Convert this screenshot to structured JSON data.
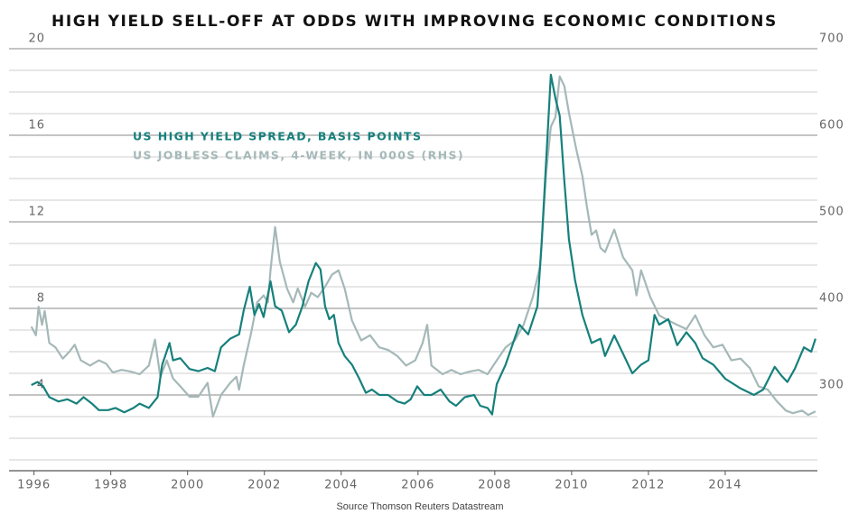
{
  "chart_data": {
    "type": "line",
    "title": "HIGH YIELD SELL-OFF AT ODDS WITH IMPROVING ECONOMIC CONDITIONS",
    "source": "Source Thomson Reuters Datastream",
    "xlim": [
      1995.35,
      2016.4
    ],
    "xticks": [
      1996,
      1998,
      2000,
      2002,
      2004,
      2006,
      2008,
      2010,
      2012,
      2014
    ],
    "ylim": [
      0.5,
      20
    ],
    "yticks": [
      4,
      8,
      12,
      16,
      20
    ],
    "minor_yticks": [
      1,
      2,
      3,
      5,
      6,
      7,
      9,
      10,
      11,
      13,
      14,
      15,
      17,
      18,
      19
    ],
    "y2lim": [
      212.5,
      700
    ],
    "y2ticks": [
      300,
      400,
      500,
      600,
      700
    ],
    "grid": true,
    "legend": "upper left",
    "series": [
      {
        "name": "US HIGH YIELD SPREAD, BASIS POINTS",
        "color": "#16807c",
        "axis": "y",
        "x": [
          1995.93,
          1996.09,
          1996.24,
          1996.4,
          1996.64,
          1996.87,
          1997.11,
          1997.29,
          1997.51,
          1997.69,
          1997.93,
          1998.12,
          1998.35,
          1998.59,
          1998.75,
          1998.99,
          1999.22,
          1999.34,
          1999.53,
          1999.62,
          1999.81,
          2000.05,
          2000.28,
          2000.52,
          2000.71,
          2000.87,
          2001.11,
          2001.34,
          2001.46,
          2001.62,
          2001.74,
          2001.86,
          2001.98,
          2002.16,
          2002.28,
          2002.45,
          2002.64,
          2002.82,
          2002.99,
          2003.15,
          2003.34,
          2003.46,
          2003.58,
          2003.69,
          2003.81,
          2003.93,
          2004.09,
          2004.28,
          2004.47,
          2004.64,
          2004.8,
          2004.99,
          2005.22,
          2005.46,
          2005.65,
          2005.81,
          2005.98,
          2006.16,
          2006.35,
          2006.59,
          2006.82,
          2006.99,
          2007.22,
          2007.46,
          2007.62,
          2007.81,
          2007.93,
          2008.05,
          2008.28,
          2008.64,
          2008.87,
          2009.11,
          2009.22,
          2009.46,
          2009.58,
          2009.69,
          2009.81,
          2009.93,
          2010.09,
          2010.28,
          2010.52,
          2010.75,
          2010.87,
          2011.11,
          2011.34,
          2011.58,
          2011.81,
          2012.0,
          2012.16,
          2012.28,
          2012.52,
          2012.75,
          2012.99,
          2013.22,
          2013.41,
          2013.69,
          2014.0,
          2014.4,
          2014.75,
          2014.99,
          2015.29,
          2015.46,
          2015.62,
          2015.81,
          2016.05,
          2016.24,
          2016.35
        ],
        "values": [
          4.46,
          4.6,
          4.4,
          3.9,
          3.7,
          3.8,
          3.6,
          3.9,
          3.6,
          3.3,
          3.3,
          3.4,
          3.2,
          3.4,
          3.6,
          3.4,
          3.9,
          5.4,
          6.4,
          5.6,
          5.7,
          5.2,
          5.1,
          5.25,
          5.1,
          6.2,
          6.6,
          6.8,
          7.9,
          9.0,
          7.7,
          8.2,
          7.6,
          9.25,
          8.1,
          7.9,
          6.9,
          7.25,
          8.1,
          9.25,
          10.1,
          9.8,
          8.1,
          7.5,
          7.7,
          6.4,
          5.8,
          5.4,
          4.75,
          4.1,
          4.25,
          4.0,
          4.0,
          3.7,
          3.6,
          3.8,
          4.4,
          4.0,
          4.0,
          4.25,
          3.7,
          3.5,
          3.9,
          4.0,
          3.5,
          3.4,
          3.1,
          4.5,
          5.4,
          7.25,
          6.8,
          8.1,
          11.0,
          18.8,
          17.7,
          16.9,
          13.9,
          11.2,
          9.3,
          7.7,
          6.4,
          6.6,
          5.8,
          6.75,
          5.9,
          5.0,
          5.4,
          5.6,
          7.7,
          7.25,
          7.5,
          6.3,
          6.9,
          6.4,
          5.7,
          5.4,
          4.75,
          4.3,
          4.0,
          4.25,
          5.3,
          4.9,
          4.6,
          5.2,
          6.2,
          6.0,
          6.6
        ]
      },
      {
        "name": "US JOBLESS CLAIMS, 4-WEEK, IN 000S (RHS)",
        "color": "#a5b8b8",
        "axis": "y2",
        "x": [
          1995.93,
          1996.05,
          1996.12,
          1996.21,
          1996.28,
          1996.4,
          1996.56,
          1996.75,
          1996.92,
          1997.06,
          1997.22,
          1997.46,
          1997.69,
          1997.88,
          1998.05,
          1998.28,
          1998.52,
          1998.75,
          1998.99,
          1999.15,
          1999.29,
          1999.46,
          1999.62,
          1999.81,
          2000.05,
          2000.28,
          2000.52,
          2000.66,
          2000.87,
          2001.11,
          2001.27,
          2001.34,
          2001.46,
          2001.65,
          2001.81,
          2001.98,
          2002.09,
          2002.16,
          2002.28,
          2002.4,
          2002.59,
          2002.75,
          2002.87,
          2003.06,
          2003.22,
          2003.39,
          2003.58,
          2003.76,
          2003.93,
          2004.09,
          2004.28,
          2004.52,
          2004.75,
          2004.99,
          2005.22,
          2005.46,
          2005.69,
          2005.93,
          2006.12,
          2006.24,
          2006.35,
          2006.64,
          2006.87,
          2007.11,
          2007.34,
          2007.58,
          2007.81,
          2008.05,
          2008.28,
          2008.52,
          2008.75,
          2008.99,
          2009.18,
          2009.34,
          2009.46,
          2009.58,
          2009.69,
          2009.81,
          2009.93,
          2010.12,
          2010.28,
          2010.4,
          2010.52,
          2010.64,
          2010.75,
          2010.87,
          2011.11,
          2011.34,
          2011.58,
          2011.69,
          2011.81,
          2012.05,
          2012.28,
          2012.52,
          2012.75,
          2012.99,
          2013.22,
          2013.46,
          2013.69,
          2013.93,
          2014.16,
          2014.4,
          2014.64,
          2014.87,
          2015.11,
          2015.34,
          2015.58,
          2015.76,
          2016.0,
          2016.16,
          2016.35
        ],
        "values": [
          379,
          369,
          402,
          381,
          397,
          360,
          355,
          342,
          350,
          358,
          340,
          334,
          340,
          336,
          326,
          329,
          327,
          324,
          334,
          364,
          321,
          340,
          319,
          310,
          298,
          298,
          314,
          275,
          300,
          314,
          321,
          306,
          334,
          371,
          407,
          415,
          407,
          444,
          494,
          454,
          423,
          407,
          423,
          402,
          418,
          413,
          425,
          439,
          444,
          423,
          386,
          363,
          369,
          355,
          352,
          345,
          334,
          340,
          360,
          381,
          334,
          324,
          329,
          324,
          327,
          329,
          324,
          340,
          355,
          363,
          381,
          413,
          449,
          558,
          610,
          621,
          668,
          657,
          626,
          584,
          553,
          517,
          485,
          490,
          470,
          465,
          491,
          459,
          444,
          415,
          444,
          413,
          392,
          386,
          381,
          376,
          392,
          369,
          355,
          358,
          340,
          342,
          331,
          310,
          306,
          293,
          282,
          279,
          282,
          277,
          281
        ]
      }
    ]
  }
}
